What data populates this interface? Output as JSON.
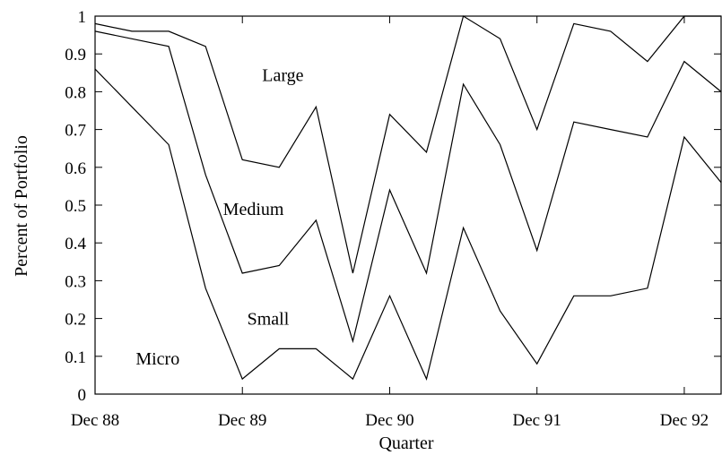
{
  "chart_data": {
    "type": "area",
    "stacked": true,
    "xlabel": "Quarter",
    "ylabel": "Percent of Portfolio",
    "ylim": [
      0,
      1
    ],
    "yticks": [
      "0",
      "0.1",
      "0.2",
      "0.3",
      "0.4",
      "0.5",
      "0.6",
      "0.7",
      "0.8",
      "0.9",
      "1"
    ],
    "xticks": [
      "Dec 88",
      "Dec 89",
      "Dec 90",
      "Dec 91",
      "Dec 92"
    ],
    "x": [
      "Dec 88",
      "Mar 89",
      "Jun 89",
      "Sep 89",
      "Dec 89",
      "Mar 90",
      "Jun 90",
      "Sep 90",
      "Dec 90",
      "Mar 91",
      "Jun 91",
      "Sep 91",
      "Dec 91",
      "Mar 92",
      "Jun 92",
      "Sep 92",
      "Dec 92",
      "Mar 93"
    ],
    "boundaries": [
      {
        "between": [
          "Micro",
          "Small"
        ],
        "values": [
          0.86,
          0.76,
          0.66,
          0.28,
          0.04,
          0.12,
          0.12,
          0.04,
          0.26,
          0.04,
          0.44,
          0.22,
          0.08,
          0.26,
          0.26,
          0.28,
          0.68,
          0.56
        ]
      },
      {
        "between": [
          "Small",
          "Medium"
        ],
        "values": [
          0.96,
          0.94,
          0.92,
          0.58,
          0.32,
          0.34,
          0.46,
          0.14,
          0.54,
          0.32,
          0.82,
          0.66,
          0.38,
          0.72,
          0.7,
          0.68,
          0.88,
          0.8
        ]
      },
      {
        "between": [
          "Medium",
          "Large"
        ],
        "values": [
          0.98,
          0.96,
          0.96,
          0.92,
          0.62,
          0.6,
          0.76,
          0.32,
          0.74,
          0.64,
          1.0,
          0.94,
          0.7,
          0.98,
          0.96,
          0.88,
          1.0,
          1.0
        ]
      }
    ],
    "region_labels": [
      {
        "text": "Large",
        "x_index": 5.1,
        "y": 0.845
      },
      {
        "text": "Medium",
        "x_index": 4.3,
        "y": 0.49
      },
      {
        "text": "Small",
        "x_index": 4.7,
        "y": 0.2
      },
      {
        "text": "Micro",
        "x_index": 1.7,
        "y": 0.095
      }
    ],
    "grid": false,
    "legend": "none"
  }
}
